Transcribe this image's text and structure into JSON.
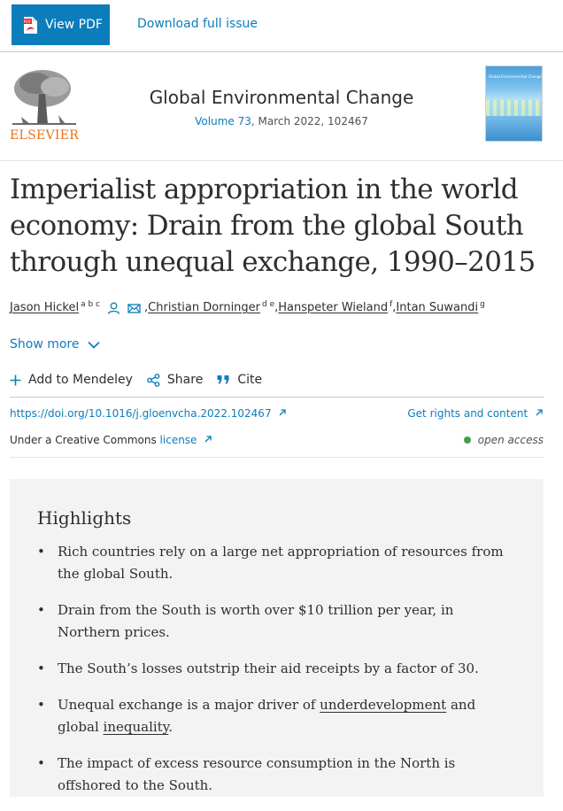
{
  "toolbar": {
    "view_pdf_label": "View PDF",
    "pdf_icon_text": "PDF",
    "download_issue_label": "Download full issue"
  },
  "journal": {
    "publisher": "ELSEVIER",
    "title": "Global Environmental Change",
    "volume_link": "Volume 73",
    "meta_rest": ", March 2022, 102467",
    "cover_title": "Global Environmental Change"
  },
  "article": {
    "title": "Imperialist appropriation in the world economy: Drain from the global South through unequal exchange, 1990–2015",
    "authors": [
      {
        "name": "Jason Hickel",
        "sup": "a b c"
      },
      {
        "name": "Christian Dorninger",
        "sup": "d e"
      },
      {
        "name": "Hanspeter Wieland",
        "sup": "f"
      },
      {
        "name": "Intan Suwandi",
        "sup": "g"
      }
    ],
    "separator": ", ",
    "show_more": "Show more"
  },
  "actions": {
    "mendeley": "Add to Mendeley",
    "share": "Share",
    "cite": "Cite"
  },
  "links": {
    "doi": "https://doi.org/10.1016/j.gloenvcha.2022.102467",
    "rights": "Get rights and content",
    "cc_prefix": "Under a Creative Commons ",
    "cc_license": "license",
    "open_access": "open access"
  },
  "highlights": {
    "title": "Highlights",
    "items": [
      {
        "text": "Rich countries rely on a large net appropriation of resources from the global South."
      },
      {
        "text": "Drain from the South is worth over $10 trillion per year, in Northern prices."
      },
      {
        "text": "The South’s losses outstrip their aid receipts by a factor of 30."
      },
      {
        "pre": "Unequal exchange is a major driver of ",
        "link1": "underdevelopment",
        "mid": " and global ",
        "link2": "inequality",
        "post": "."
      },
      {
        "text": "The impact of excess resource consumption in the North is offshored to the South."
      }
    ]
  },
  "colors": {
    "accent": "#0c7dbb",
    "publisher_orange": "#e9711c",
    "open_access_green": "#43a047"
  }
}
